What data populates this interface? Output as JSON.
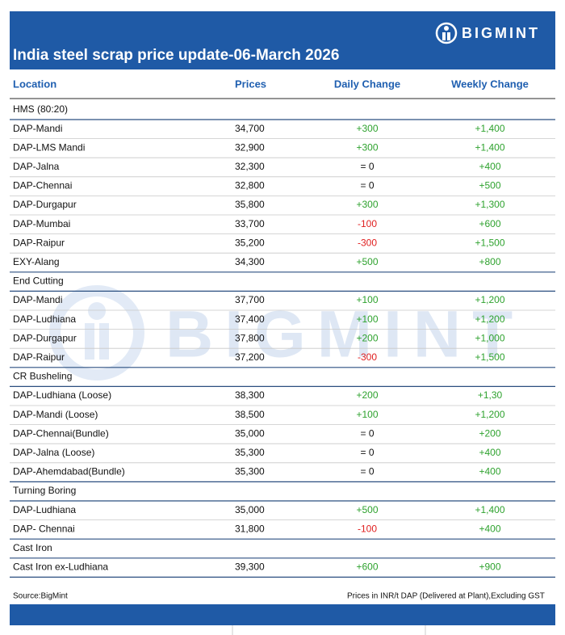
{
  "header": {
    "title": "India steel scrap price update-06-March 2026",
    "logo": "BIGMINT"
  },
  "watermark": "BIGMINT",
  "table": {
    "columns": [
      "Location",
      "Prices",
      "Daily Change",
      "Weekly Change"
    ],
    "sections": [
      {
        "name": "HMS (80:20)",
        "rows": [
          [
            "DAP-Mandi",
            "34,700",
            "+300",
            "+1,400"
          ],
          [
            "DAP-LMS Mandi",
            "32,900",
            "+300",
            "+1,400"
          ],
          [
            "DAP-Jalna",
            "32,300",
            "= 0",
            "+400"
          ],
          [
            "DAP-Chennai",
            "32,800",
            "= 0",
            "+500"
          ],
          [
            "DAP-Durgapur",
            "35,800",
            "+300",
            "+1,300"
          ],
          [
            "DAP-Mumbai",
            "33,700",
            "-100",
            "+600"
          ],
          [
            "DAP-Raipur",
            "35,200",
            "-300",
            "+1,500"
          ],
          [
            "EXY-Alang",
            "34,300",
            "+500",
            "+800"
          ]
        ]
      },
      {
        "name": "End Cutting",
        "rows": [
          [
            "DAP-Mandi",
            "37,700",
            "+100",
            "+1,200"
          ],
          [
            "DAP-Ludhiana",
            "37,400",
            "+100",
            "+1,200"
          ],
          [
            "DAP-Durgapur",
            "37,800",
            "+200",
            "+1,000"
          ],
          [
            "DAP-Raipur",
            "37,200",
            "-300",
            "+1,500"
          ]
        ]
      },
      {
        "name": "CR Busheling",
        "rows": [
          [
            "DAP-Ludhiana (Loose)",
            "38,300",
            "+200",
            "+1,30"
          ],
          [
            "DAP-Mandi (Loose)",
            "38,500",
            "+100",
            "+1,200"
          ],
          [
            "DAP-Chennai(Bundle)",
            "35,000",
            "= 0",
            "+200"
          ],
          [
            "DAP-Jalna (Loose)",
            "35,300",
            "= 0",
            "+400"
          ],
          [
            "DAP-Ahemdabad(Bundle)",
            "35,300",
            "= 0",
            "+400"
          ]
        ]
      },
      {
        "name": "Turning Boring",
        "rows": [
          [
            "DAP-Ludhiana",
            "35,000",
            "+500",
            "+1,400"
          ],
          [
            "DAP- Chennai",
            "31,800",
            "-100",
            "+400"
          ]
        ]
      },
      {
        "name": "Cast Iron",
        "rows": [
          [
            "Cast Iron ex-Ludhiana",
            "39,300",
            "+600",
            "+900"
          ]
        ]
      }
    ]
  },
  "footer": {
    "source": "Source:BigMint",
    "note": "Prices in INR/t DAP (Delivered at Plant),Excluding GST"
  }
}
